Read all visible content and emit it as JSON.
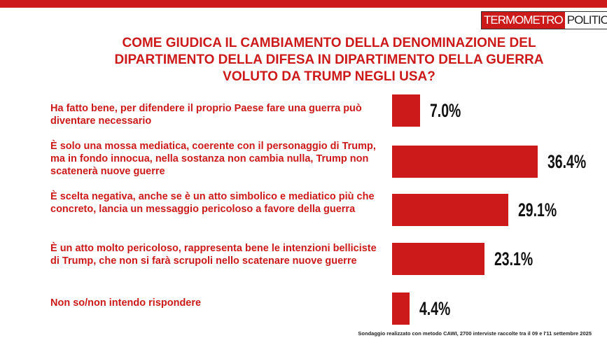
{
  "logo": {
    "left": "TERMOMETRO",
    "right": "POLITICO"
  },
  "chart_data": {
    "type": "bar",
    "title": "COME GIUDICA IL CAMBIAMENTO DELLA DENOMINAZIONE DEL DIPARTIMENTO DELLA DIFESA IN DIPARTIMENTO DELLA GUERRA VOLUTO DA TRUMP NEGLI USA?",
    "categories": [
      "Ha fatto bene, per difendere il proprio Paese fare una guerra può diventare necessario",
      "È solo una mossa mediatica, coerente con il personaggio di Trump, ma in fondo innocua, nella sostanza non cambia nulla, Trump non scatenerà nuove guerre",
      "È scelta negativa, anche se è un atto simbolico e mediatico più che concreto, lancia un messaggio pericoloso a favore della guerra",
      "È un atto molto pericoloso, rappresenta bene le intenzioni belliciste di Trump, che non si farà scrupoli nello scatenare nuove guerre",
      "Non so/non intendo rispondere"
    ],
    "values": [
      7.0,
      36.4,
      29.1,
      23.1,
      4.4
    ],
    "value_labels": [
      "7.0%",
      "36.4%",
      "29.1%",
      "23.1%",
      "4.4%"
    ],
    "color": "#cc1a1a",
    "note": "Sondaggio realizzato con metodo CAWI, 2700 interviste raccolte tra il 09 e l'11 settembre 2025"
  }
}
